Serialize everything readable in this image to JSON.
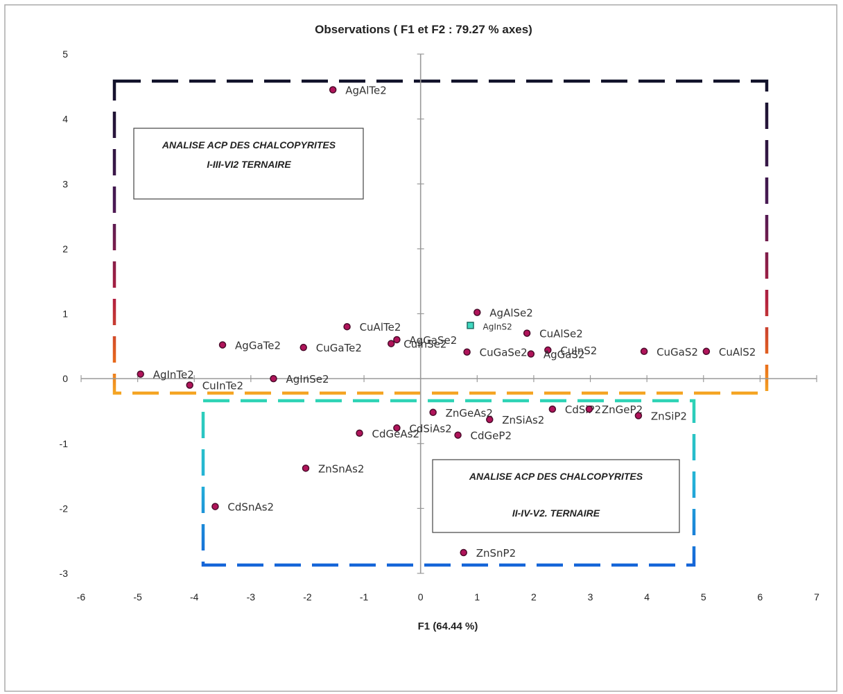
{
  "chart_data": {
    "type": "scatter",
    "title": "Observations ( F1 et F2 : 79.27 % axes)",
    "xlabel": "F1 (64.44 %)",
    "ylabel": "",
    "xlim": [
      -6,
      7
    ],
    "ylim": [
      -3,
      5
    ],
    "xticks": [
      -6,
      -5,
      -4,
      -3,
      -2,
      -1,
      0,
      1,
      2,
      3,
      4,
      5,
      6,
      7
    ],
    "yticks": [
      -3,
      -2,
      -1,
      0,
      1,
      2,
      3,
      4,
      5
    ],
    "grid": false,
    "colors": {
      "point_fill": "#b0145a",
      "point_stroke": "#4a0b2a",
      "highlight_fill": "#3fd9c0",
      "highlight_stroke": "#1f6b63",
      "axis": "#999999"
    },
    "points": [
      {
        "label": "AgAlTe2",
        "x": -1.55,
        "y": 4.45
      },
      {
        "label": "AgAlSe2",
        "x": 1.0,
        "y": 1.02
      },
      {
        "label": "AgInS2",
        "x": 0.88,
        "y": 0.82,
        "highlight": true
      },
      {
        "label": "CuAlSe2",
        "x": 1.88,
        "y": 0.7
      },
      {
        "label": "CuAlTe2",
        "x": -1.3,
        "y": 0.8
      },
      {
        "label": "AgGaSe2",
        "x": -0.42,
        "y": 0.6
      },
      {
        "label": "CuInSe2",
        "x": -0.52,
        "y": 0.54
      },
      {
        "label": "AgGaTe2",
        "x": -3.5,
        "y": 0.52
      },
      {
        "label": "CuGaTe2",
        "x": -2.07,
        "y": 0.48
      },
      {
        "label": "CuGaSe2",
        "x": 0.82,
        "y": 0.41
      },
      {
        "label": "CuInS2",
        "x": 2.25,
        "y": 0.44
      },
      {
        "label": "AgGaS2",
        "x": 1.95,
        "y": 0.38
      },
      {
        "label": "CuGaS2",
        "x": 3.95,
        "y": 0.42
      },
      {
        "label": "CuAlS2",
        "x": 5.05,
        "y": 0.42
      },
      {
        "label": "AgInTe2",
        "x": -4.95,
        "y": 0.07
      },
      {
        "label": "CuInTe2",
        "x": -4.08,
        "y": -0.1
      },
      {
        "label": "AgInSe2",
        "x": -2.6,
        "y": 0.0
      },
      {
        "label": "ZnGeAs2",
        "x": 0.22,
        "y": -0.52
      },
      {
        "label": "CdSiP2",
        "x": 2.33,
        "y": -0.47
      },
      {
        "label": "ZnGeP2",
        "x": 2.98,
        "y": -0.47
      },
      {
        "label": "ZnSiP2",
        "x": 3.85,
        "y": -0.57
      },
      {
        "label": "ZnSiAs2",
        "x": 1.22,
        "y": -0.63
      },
      {
        "label": "CdSiAs2",
        "x": -0.42,
        "y": -0.76
      },
      {
        "label": "CdGeAs2",
        "x": -1.08,
        "y": -0.84
      },
      {
        "label": "CdGeP2",
        "x": 0.66,
        "y": -0.87
      },
      {
        "label": "ZnSnAs2",
        "x": -2.03,
        "y": -1.38
      },
      {
        "label": "CdSnAs2",
        "x": -3.63,
        "y": -1.97
      },
      {
        "label": "ZnSnP2",
        "x": 0.76,
        "y": -2.68
      }
    ],
    "annotations": [
      {
        "lines": [
          "ANALISE ACP DES CHALCOPYRITES",
          "I-III-VI2 TERNAIRE"
        ]
      },
      {
        "lines": [
          "ANALISE ACP DES CHALCOPYRITES",
          "II-IV-V2. TERNAIRE"
        ]
      }
    ]
  }
}
